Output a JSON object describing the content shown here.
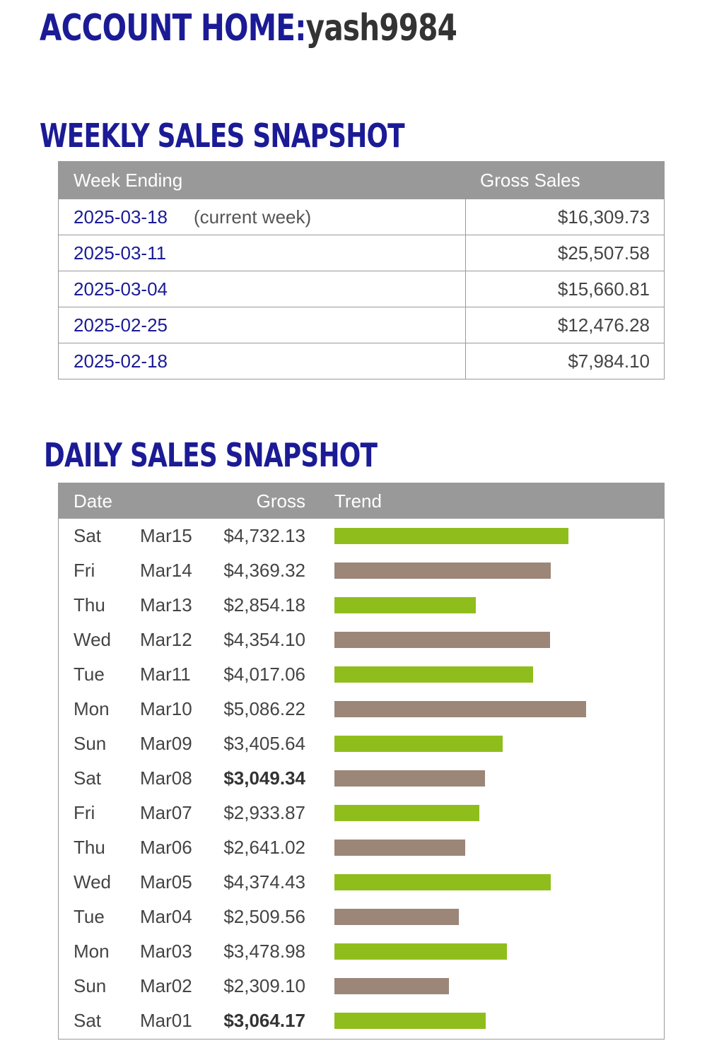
{
  "header": {
    "title_label": "ACCOUNT HOME:",
    "username": "yash9984"
  },
  "weekly": {
    "title": "WEEKLY SALES SNAPSHOT",
    "columns": [
      "Week Ending",
      "Gross Sales"
    ],
    "rows": [
      {
        "date": "2025-03-18",
        "note": "(current week)",
        "amount": "$16,309.73"
      },
      {
        "date": "2025-03-11",
        "note": "",
        "amount": "$25,507.58"
      },
      {
        "date": "2025-03-04",
        "note": "",
        "amount": "$15,660.81"
      },
      {
        "date": "2025-02-25",
        "note": "",
        "amount": "$12,476.28"
      },
      {
        "date": "2025-02-18",
        "note": "",
        "amount": "$7,984.10"
      }
    ]
  },
  "daily": {
    "title": "DAILY SALES SNAPSHOT",
    "columns": [
      "Date",
      "Gross",
      "Trend"
    ],
    "colors": {
      "green": "#8fbe1c",
      "brown": "#9c8677"
    },
    "rows": [
      {
        "dow": "Sat",
        "date": "Mar15",
        "gross": "$4,732.13",
        "value": 4732.13,
        "bold": false,
        "color": "green"
      },
      {
        "dow": "Fri",
        "date": "Mar14",
        "gross": "$4,369.32",
        "value": 4369.32,
        "bold": false,
        "color": "brown"
      },
      {
        "dow": "Thu",
        "date": "Mar13",
        "gross": "$2,854.18",
        "value": 2854.18,
        "bold": false,
        "color": "green"
      },
      {
        "dow": "Wed",
        "date": "Mar12",
        "gross": "$4,354.10",
        "value": 4354.1,
        "bold": false,
        "color": "brown"
      },
      {
        "dow": "Tue",
        "date": "Mar11",
        "gross": "$4,017.06",
        "value": 4017.06,
        "bold": false,
        "color": "green"
      },
      {
        "dow": "Mon",
        "date": "Mar10",
        "gross": "$5,086.22",
        "value": 5086.22,
        "bold": false,
        "color": "brown"
      },
      {
        "dow": "Sun",
        "date": "Mar09",
        "gross": "$3,405.64",
        "value": 3405.64,
        "bold": false,
        "color": "green"
      },
      {
        "dow": "Sat",
        "date": "Mar08",
        "gross": "$3,049.34",
        "value": 3049.34,
        "bold": true,
        "color": "brown"
      },
      {
        "dow": "Fri",
        "date": "Mar07",
        "gross": "$2,933.87",
        "value": 2933.87,
        "bold": false,
        "color": "green"
      },
      {
        "dow": "Thu",
        "date": "Mar06",
        "gross": "$2,641.02",
        "value": 2641.02,
        "bold": false,
        "color": "brown"
      },
      {
        "dow": "Wed",
        "date": "Mar05",
        "gross": "$4,374.43",
        "value": 4374.43,
        "bold": false,
        "color": "green"
      },
      {
        "dow": "Tue",
        "date": "Mar04",
        "gross": "$2,509.56",
        "value": 2509.56,
        "bold": false,
        "color": "brown"
      },
      {
        "dow": "Mon",
        "date": "Mar03",
        "gross": "$3,478.98",
        "value": 3478.98,
        "bold": false,
        "color": "green"
      },
      {
        "dow": "Sun",
        "date": "Mar02",
        "gross": "$2,309.10",
        "value": 2309.1,
        "bold": false,
        "color": "brown"
      },
      {
        "dow": "Sat",
        "date": "Mar01",
        "gross": "$3,064.17",
        "value": 3064.17,
        "bold": true,
        "color": "green"
      }
    ]
  }
}
